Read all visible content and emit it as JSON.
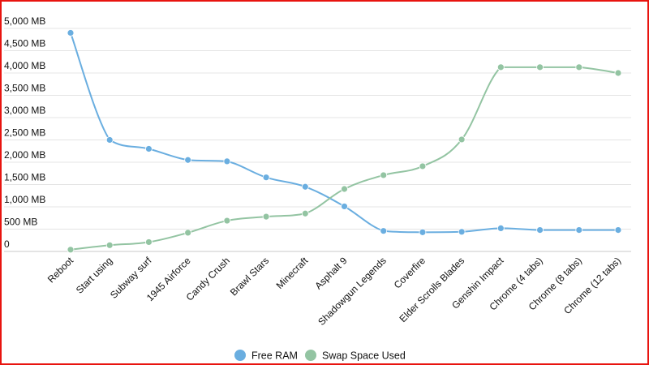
{
  "chart_data": {
    "type": "line",
    "categories": [
      "Reboot",
      "Start using",
      "Subway surf",
      "1945 Airforce",
      "Candy Crush",
      "Brawl Stars",
      "Minecraft",
      "Asphalt 9",
      "Shadowgun Legends",
      "Coverfire",
      "Elder Scrolls Blades",
      "Genshin Impact",
      "Chrome (4 tabs)",
      "Chrome (8 tabs)",
      "Chrome (12 tabs)"
    ],
    "y_ticks": [
      0,
      500,
      1000,
      1500,
      2000,
      2500,
      3000,
      3500,
      4000,
      4500,
      5000
    ],
    "y_tick_labels": [
      "0",
      "500 MB",
      "1,000 MB",
      "1,500 MB",
      "2,000 MB",
      "2,500 MB",
      "3,000 MB",
      "3,500 MB",
      "4,000 MB",
      "4,500 MB",
      "5,000 MB"
    ],
    "ylim": [
      0,
      5000
    ],
    "grid": true,
    "legend_position": "bottom-center",
    "series": [
      {
        "name": "Free RAM",
        "color": "#6aaee0",
        "values": [
          4900,
          2500,
          2300,
          2050,
          2020,
          1660,
          1450,
          1010,
          460,
          430,
          440,
          520,
          480,
          480,
          480
        ]
      },
      {
        "name": "Swap Space Used",
        "color": "#93c4a2",
        "values": [
          40,
          140,
          210,
          420,
          690,
          780,
          850,
          1400,
          1710,
          1910,
          2510,
          4130,
          4130,
          4130,
          4000
        ]
      }
    ]
  }
}
